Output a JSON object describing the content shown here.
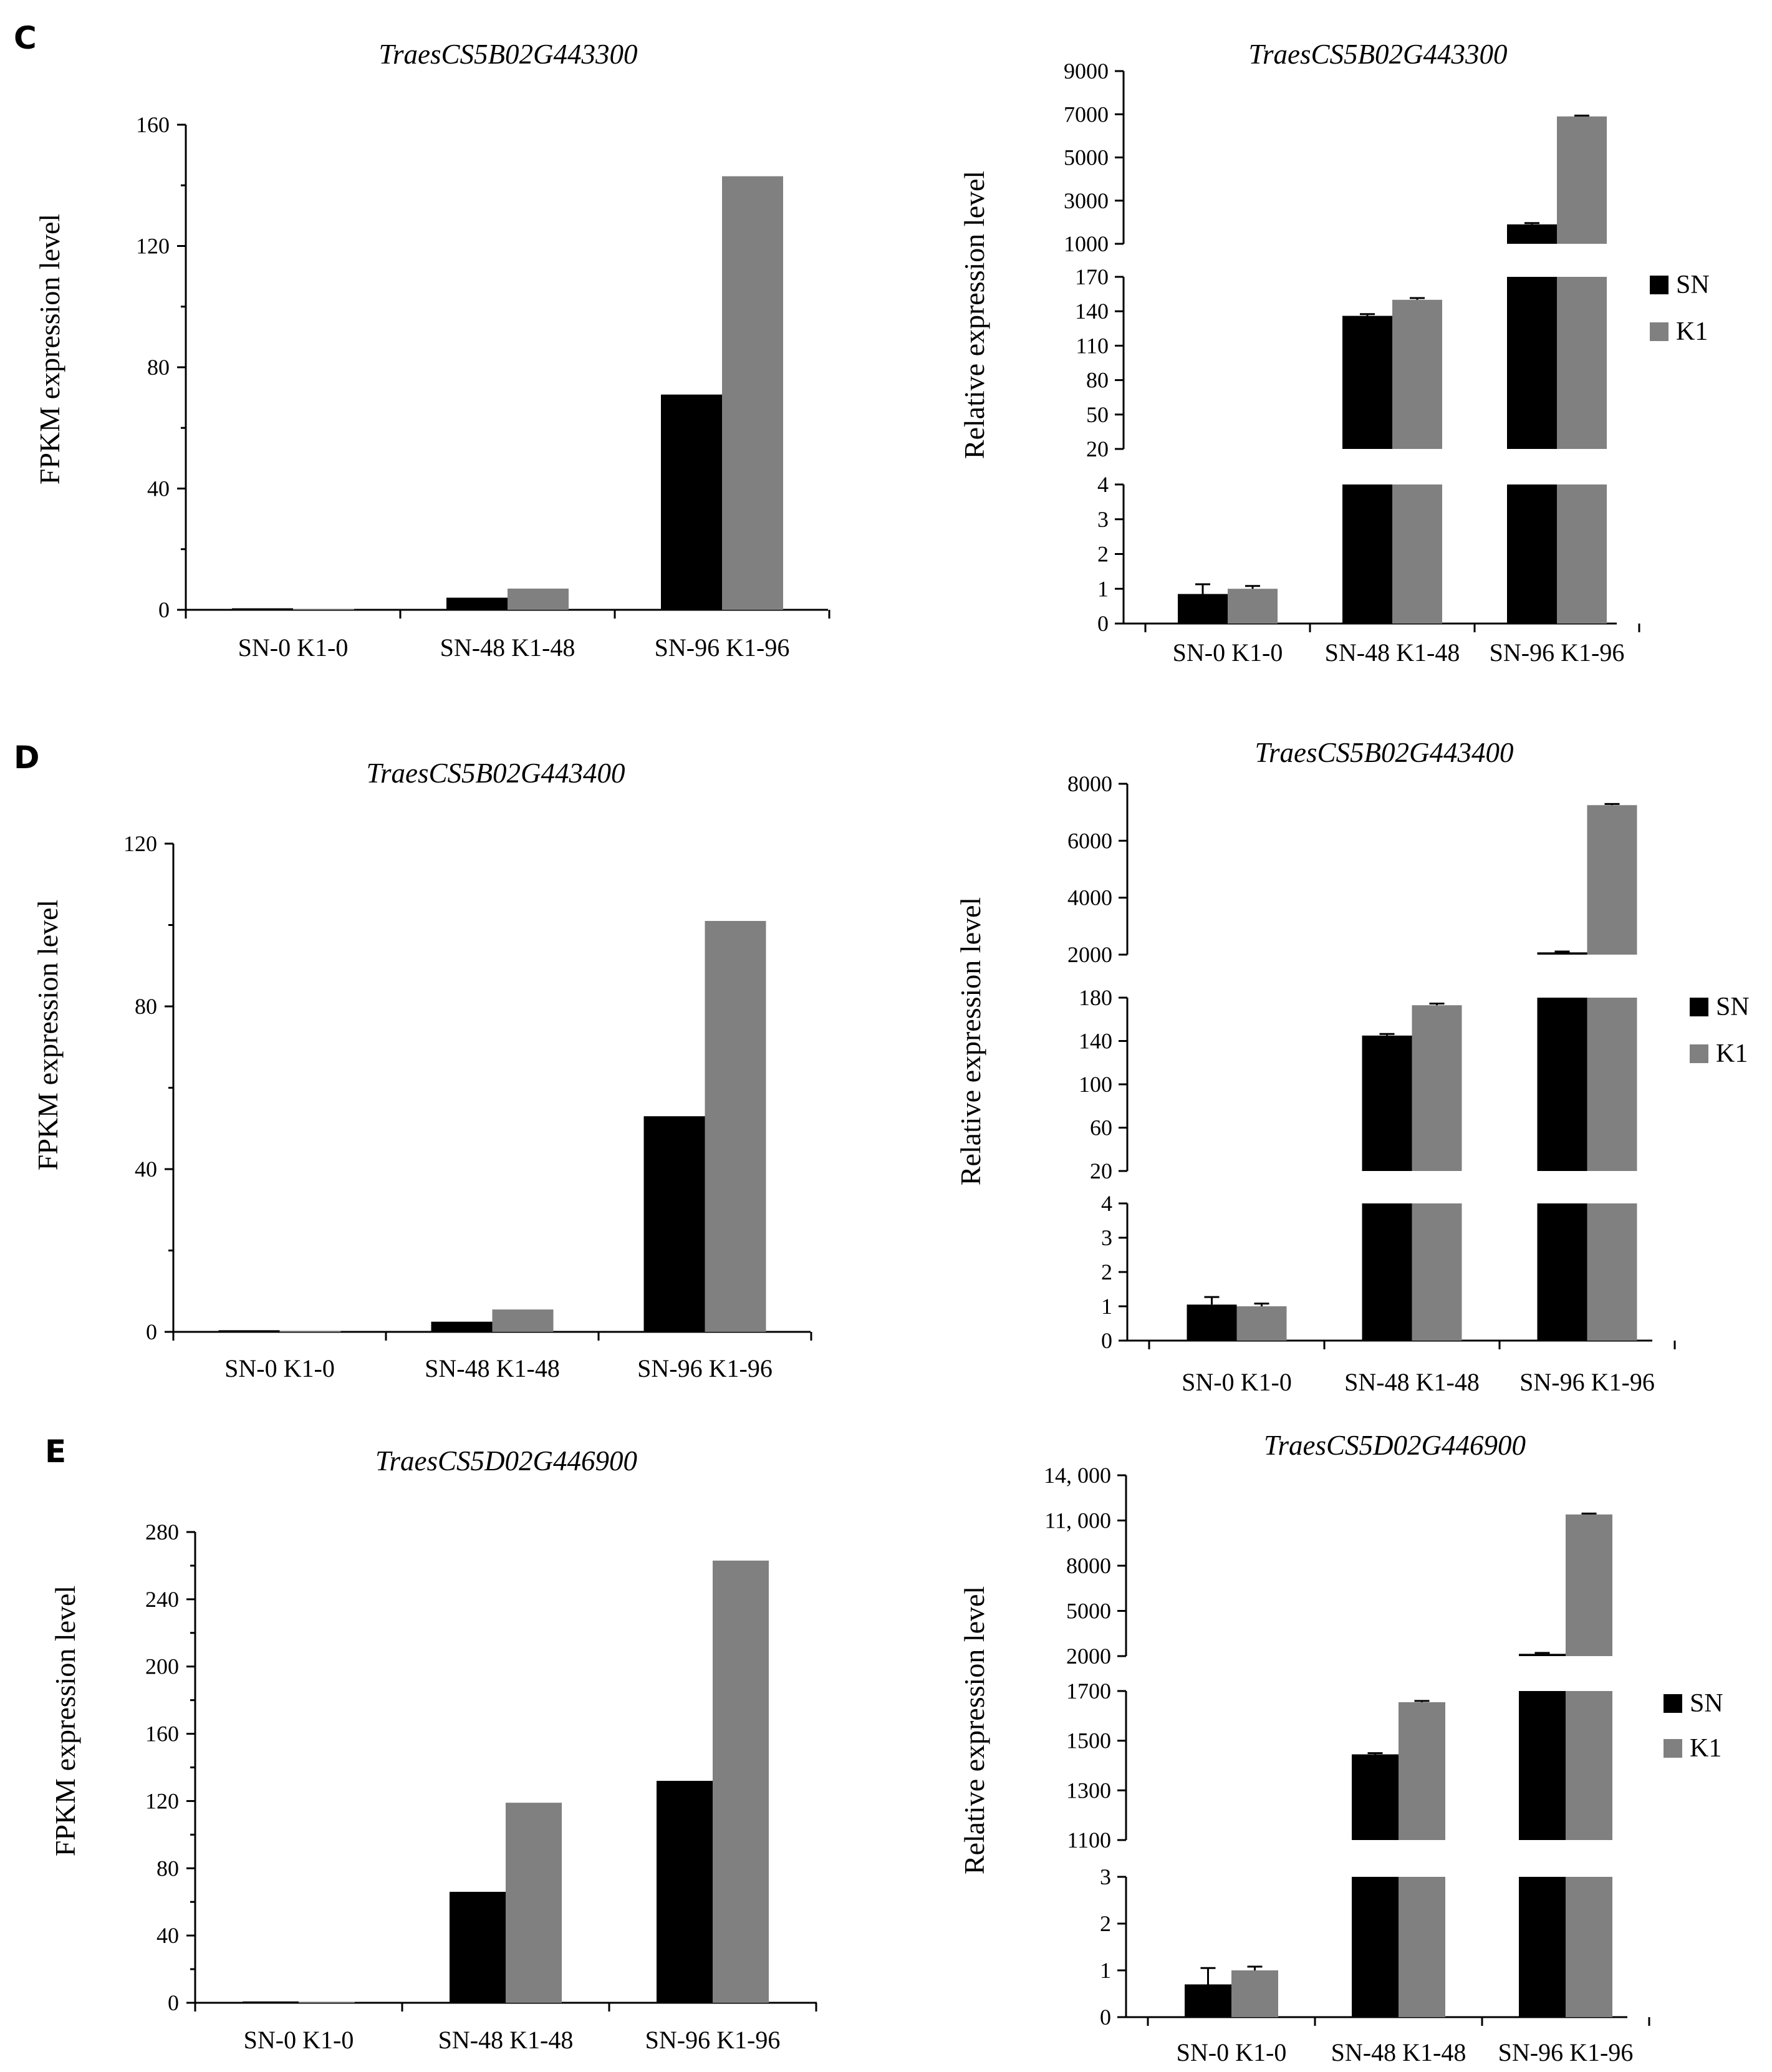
{
  "colors": {
    "SN": "#000000",
    "K1": "#808080"
  },
  "panels": [
    {
      "letter": "C",
      "title": "TraesCS5B02G443300"
    },
    {
      "letter": "D",
      "title": "TraesCS5B02G443400"
    },
    {
      "letter": "E",
      "title": "TraesCS5D02G446900"
    }
  ],
  "chart_data": [
    {
      "panel": "C",
      "side": "left",
      "type": "bar",
      "title": "TraesCS5B02G443300",
      "ylabel": "FPKM expression level",
      "categories": [
        "SN-0 K1-0",
        "SN-48 K1-48",
        "SN-96 K1-96"
      ],
      "series": [
        {
          "name": "SN",
          "values": [
            0.5,
            4,
            71
          ]
        },
        {
          "name": "K1",
          "values": [
            0.3,
            7,
            143
          ]
        }
      ],
      "ylim": [
        0,
        160
      ],
      "yticks": [
        "0",
        "40",
        "80",
        "120",
        "160"
      ]
    },
    {
      "panel": "C",
      "side": "right",
      "type": "bar",
      "title": "TraesCS5B02G443300",
      "ylabel": "Relative expression level",
      "categories": [
        "SN-0 K1-0",
        "SN-48 K1-48",
        "SN-96 K1-96"
      ],
      "legend": [
        "SN",
        "K1"
      ],
      "series": [
        {
          "name": "SN",
          "values": [
            0.85,
            136,
            1900
          ],
          "errors": [
            0.28,
            1.5,
            60
          ]
        },
        {
          "name": "K1",
          "values": [
            1.0,
            150,
            6900
          ],
          "errors": [
            0.08,
            1.5,
            40
          ]
        }
      ],
      "segments": [
        {
          "range": [
            0,
            4
          ],
          "ticks": [
            "0",
            "1",
            "2",
            "3",
            "4"
          ]
        },
        {
          "range": [
            20,
            170
          ],
          "ticks": [
            "20",
            "50",
            "80",
            "110",
            "140",
            "170"
          ]
        },
        {
          "range": [
            1000,
            9000
          ],
          "ticks": [
            "1000",
            "3000",
            "5000",
            "7000",
            "9000"
          ]
        }
      ]
    },
    {
      "panel": "D",
      "side": "left",
      "type": "bar",
      "title": "TraesCS5B02G443400",
      "ylabel": "FPKM expression level",
      "categories": [
        "SN-0 K1-0",
        "SN-48 K1-48",
        "SN-96 K1-96"
      ],
      "series": [
        {
          "name": "SN",
          "values": [
            0.4,
            2.5,
            53
          ]
        },
        {
          "name": "K1",
          "values": [
            0.2,
            5.5,
            101
          ]
        }
      ],
      "ylim": [
        0,
        120
      ],
      "yticks": [
        "0",
        "40",
        "80",
        "120"
      ]
    },
    {
      "panel": "D",
      "side": "right",
      "type": "bar",
      "title": "TraesCS5B02G443400",
      "ylabel": "Relative expression level",
      "categories": [
        "SN-0 K1-0",
        "SN-48 K1-48",
        "SN-96 K1-96"
      ],
      "legend": [
        "SN",
        "K1"
      ],
      "series": [
        {
          "name": "SN",
          "values": [
            1.05,
            145,
            2080
          ],
          "errors": [
            0.22,
            1.5,
            30
          ]
        },
        {
          "name": "K1",
          "values": [
            1.0,
            173,
            7250
          ],
          "errors": [
            0.08,
            1.5,
            40
          ]
        }
      ],
      "segments": [
        {
          "range": [
            0,
            4
          ],
          "ticks": [
            "0",
            "1",
            "2",
            "3",
            "4"
          ]
        },
        {
          "range": [
            20,
            180
          ],
          "ticks": [
            "20",
            "60",
            "100",
            "140",
            "180"
          ]
        },
        {
          "range": [
            2000,
            8000
          ],
          "ticks": [
            "2000",
            "4000",
            "6000",
            "8000"
          ]
        }
      ]
    },
    {
      "panel": "E",
      "side": "left",
      "type": "bar",
      "title": "TraesCS5D02G446900",
      "ylabel": "FPKM expression level",
      "categories": [
        "SN-0 K1-0",
        "SN-48 K1-48",
        "SN-96 K1-96"
      ],
      "series": [
        {
          "name": "SN",
          "values": [
            0.8,
            66,
            132
          ]
        },
        {
          "name": "K1",
          "values": [
            0.5,
            119,
            263
          ]
        }
      ],
      "ylim": [
        0,
        280
      ],
      "yticks": [
        "0",
        "40",
        "80",
        "120",
        "160",
        "200",
        "240",
        "280"
      ]
    },
    {
      "panel": "E",
      "side": "right",
      "type": "bar",
      "title": "TraesCS5D02G446900",
      "ylabel": "Relative expression level",
      "categories": [
        "SN-0 K1-0",
        "SN-48 K1-48",
        "SN-96 K1-96"
      ],
      "legend": [
        "SN",
        "K1"
      ],
      "series": [
        {
          "name": "SN",
          "values": [
            0.7,
            1445,
            2150
          ],
          "errors": [
            0.35,
            5,
            60
          ]
        },
        {
          "name": "K1",
          "values": [
            1.0,
            1655,
            11400
          ],
          "errors": [
            0.08,
            5,
            60
          ]
        }
      ],
      "segments": [
        {
          "range": [
            0,
            3
          ],
          "ticks": [
            "0",
            "1",
            "2",
            "3"
          ]
        },
        {
          "range": [
            1100,
            1700
          ],
          "ticks": [
            "1100",
            "1300",
            "1500",
            "1700"
          ]
        },
        {
          "range": [
            2000,
            14000
          ],
          "ticks": [
            "2000",
            "5000",
            "8000",
            "11, 000",
            "14, 000"
          ]
        }
      ]
    }
  ]
}
